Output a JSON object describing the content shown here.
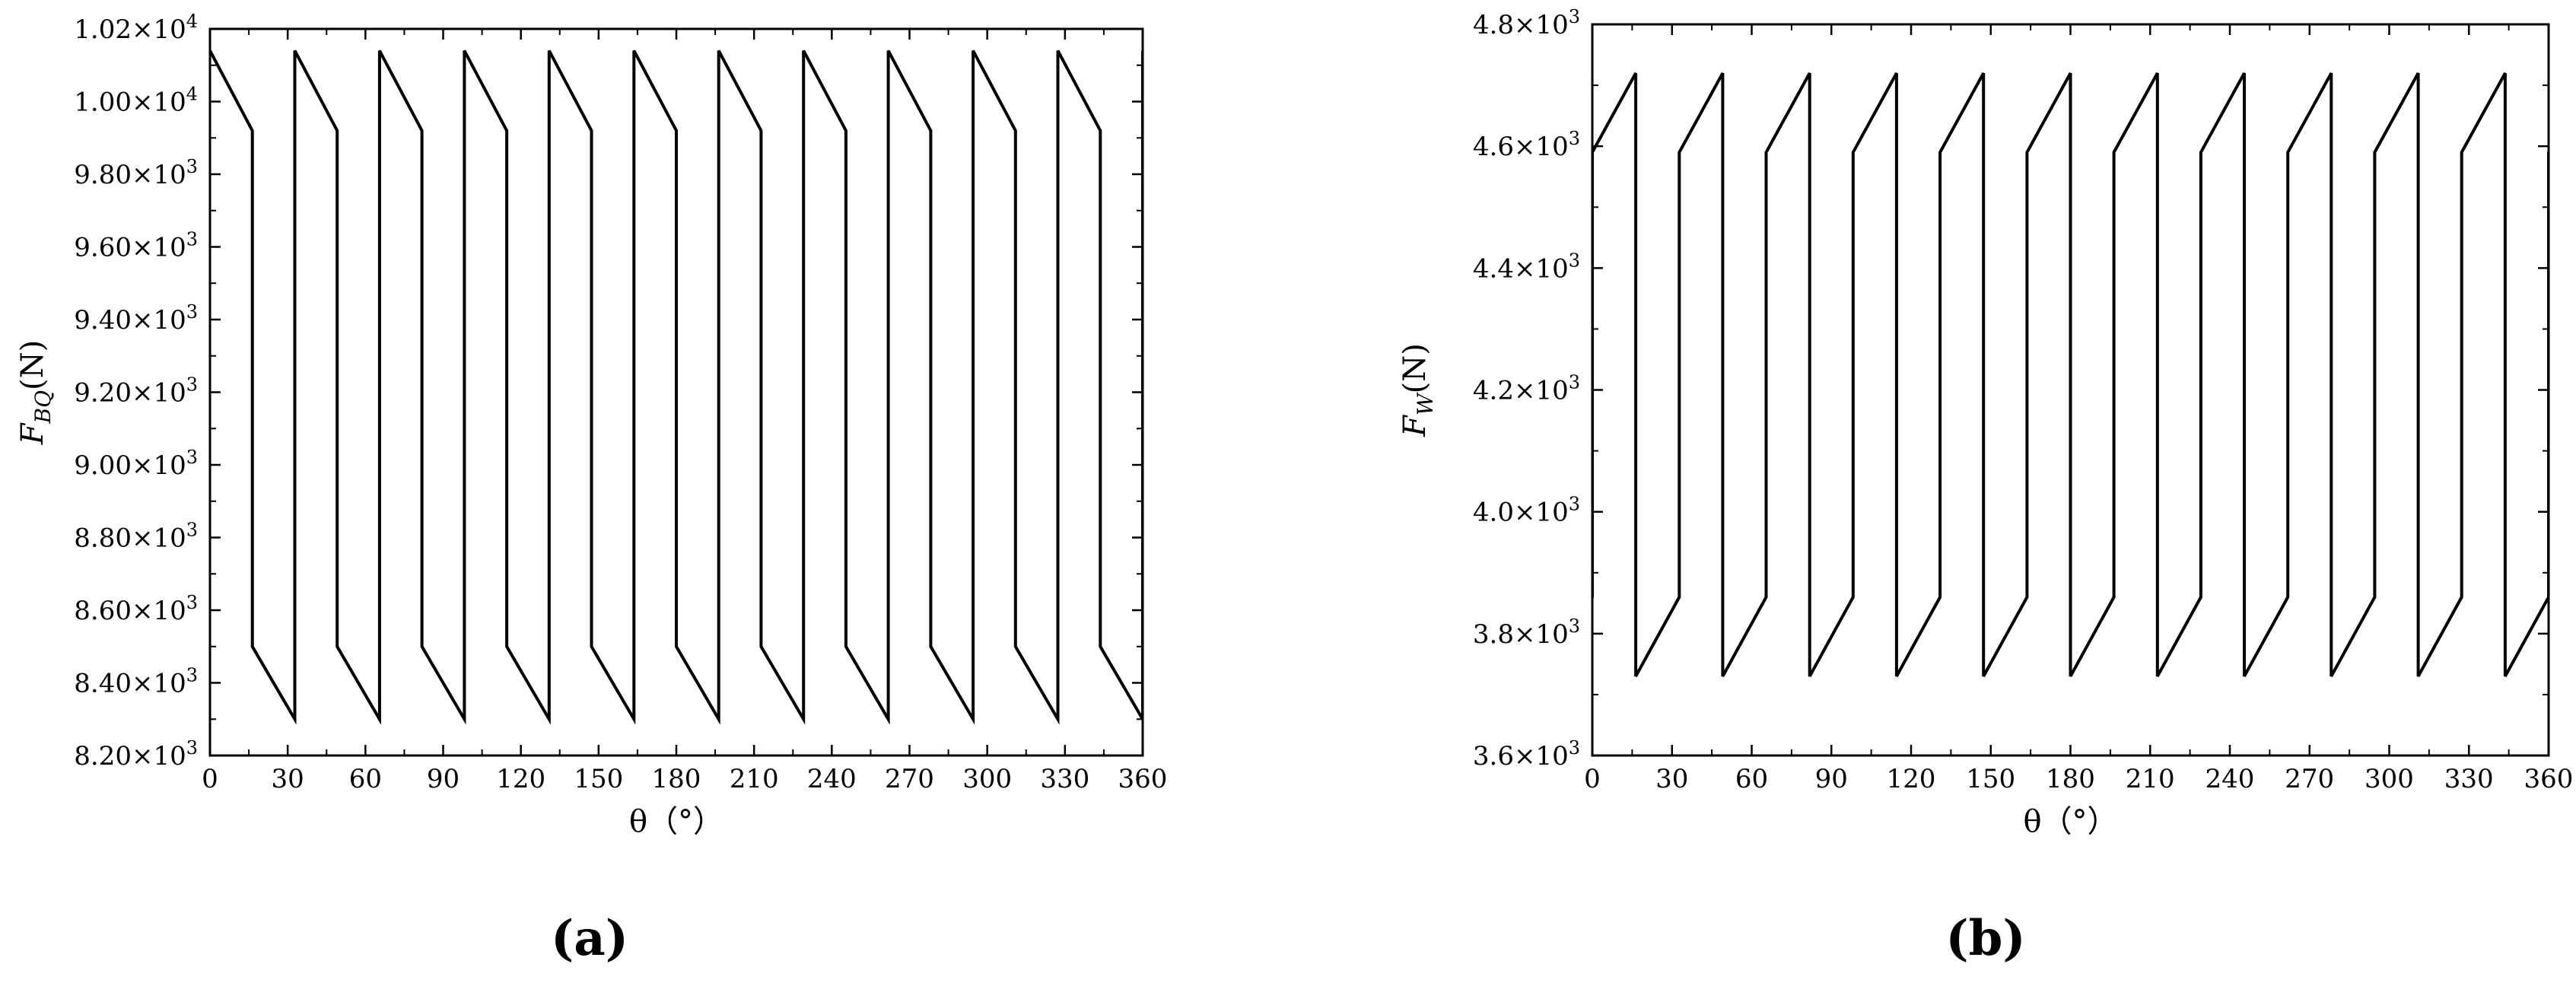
{
  "chart_data": [
    {
      "panel": "(a)",
      "type": "line",
      "xlabel": "θ（°）",
      "ylabel": "F_BQ(N)",
      "ylabel_main": "F",
      "ylabel_sub": "BQ",
      "ylabel_unit": "(N)",
      "xlim": [
        0,
        360
      ],
      "ylim": [
        8200,
        10200
      ],
      "x_ticks": [
        0,
        30,
        60,
        90,
        120,
        150,
        180,
        210,
        240,
        270,
        300,
        330,
        360
      ],
      "y_ticks": [
        {
          "value": 8200,
          "mantissa": "8.20",
          "exp": "3"
        },
        {
          "value": 8400,
          "mantissa": "8.40",
          "exp": "3"
        },
        {
          "value": 8600,
          "mantissa": "8.60",
          "exp": "3"
        },
        {
          "value": 8800,
          "mantissa": "8.80",
          "exp": "3"
        },
        {
          "value": 9000,
          "mantissa": "9.00",
          "exp": "3"
        },
        {
          "value": 9200,
          "mantissa": "9.20",
          "exp": "3"
        },
        {
          "value": 9400,
          "mantissa": "9.40",
          "exp": "3"
        },
        {
          "value": 9600,
          "mantissa": "9.60",
          "exp": "3"
        },
        {
          "value": 9800,
          "mantissa": "9.80",
          "exp": "3"
        },
        {
          "value": 10000,
          "mantissa": "1.00",
          "exp": "4"
        },
        {
          "value": 10200,
          "mantissa": "1.02",
          "exp": "4"
        }
      ],
      "minor_y_step": 100,
      "period": 32.727,
      "start": 0,
      "series": [
        {
          "style": "sawtooth",
          "pattern": [
            {
              "phase": 0.0,
              "y": 10140
            },
            {
              "phase": 0.5,
              "y": 9920
            },
            {
              "phase": 0.5,
              "y": 8500
            },
            {
              "phase": 1.0,
              "y": 8300
            },
            {
              "phase": 1.0,
              "y": 10140
            }
          ]
        }
      ],
      "grid": false
    },
    {
      "panel": "(b)",
      "type": "line",
      "xlabel": "θ（°）",
      "ylabel": "F_W(N)",
      "ylabel_main": "F",
      "ylabel_sub": "W",
      "ylabel_unit": "(N)",
      "xlim": [
        0,
        360
      ],
      "ylim": [
        3600,
        4800
      ],
      "x_ticks": [
        0,
        30,
        60,
        90,
        120,
        150,
        180,
        210,
        240,
        270,
        300,
        330,
        360
      ],
      "y_ticks": [
        {
          "value": 3600,
          "mantissa": "3.6",
          "exp": "3"
        },
        {
          "value": 3800,
          "mantissa": "3.8",
          "exp": "3"
        },
        {
          "value": 4000,
          "mantissa": "4.0",
          "exp": "3"
        },
        {
          "value": 4200,
          "mantissa": "4.2",
          "exp": "3"
        },
        {
          "value": 4400,
          "mantissa": "4.4",
          "exp": "3"
        },
        {
          "value": 4600,
          "mantissa": "4.6",
          "exp": "3"
        },
        {
          "value": 4800,
          "mantissa": "4.8",
          "exp": "3"
        }
      ],
      "minor_y_step": 100,
      "period": 32.727,
      "start": -16.364,
      "series": [
        {
          "style": "sawtooth",
          "pattern": [
            {
              "phase": 0.0,
              "y": 3730
            },
            {
              "phase": 0.5,
              "y": 3860
            },
            {
              "phase": 0.5,
              "y": 4590
            },
            {
              "phase": 1.0,
              "y": 4720
            },
            {
              "phase": 1.0,
              "y": 3730
            }
          ]
        }
      ],
      "grid": false
    }
  ],
  "labels": {
    "panel_a": "(a)",
    "panel_b": "(b)",
    "times_sign": "×",
    "base": "10"
  }
}
